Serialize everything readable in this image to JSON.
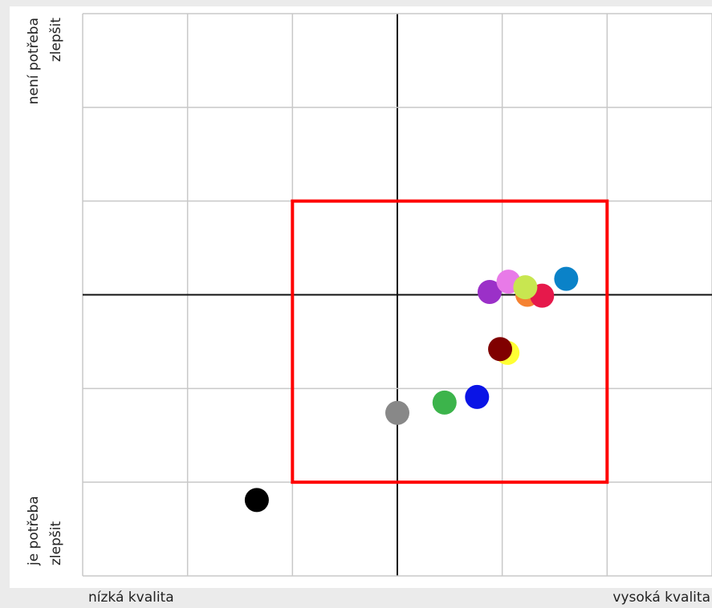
{
  "chart_data": {
    "type": "scatter",
    "x_low_label": "nízká kvalita",
    "x_high_label": "vysoká kvalita",
    "y_high_label": [
      "není potřeba",
      "zlepšit"
    ],
    "y_low_label": [
      "je potřeba",
      "zlepšit"
    ],
    "xlim": [
      -3,
      3
    ],
    "ylim": [
      -3,
      3
    ],
    "xticks": [
      -3,
      -2,
      -1,
      0,
      1,
      2,
      3
    ],
    "yticks": [
      -3,
      -2,
      -1,
      0,
      1,
      2,
      3
    ],
    "grid": true,
    "highlight_box": {
      "x": [
        -1,
        2
      ],
      "y": [
        -2,
        1
      ],
      "color": "#ff0000"
    },
    "x": [
      -1.34,
      0,
      0.45,
      0.76,
      1.05,
      0.98,
      0.88,
      1.06,
      1.24,
      1.38,
      1.22,
      1.61
    ],
    "y": [
      -2.19,
      -1.26,
      -1.15,
      -1.09,
      -0.62,
      -0.58,
      0.03,
      0.14,
      0.0,
      -0.01,
      0.08,
      0.17
    ],
    "colors": [
      "#000000",
      "#888888",
      "#3cb44b",
      "#0a14e6",
      "#ffff33",
      "#800000",
      "#9b30c8",
      "#e87ae8",
      "#f58231",
      "#e6194b",
      "#c8e650",
      "#0a82c8"
    ]
  }
}
